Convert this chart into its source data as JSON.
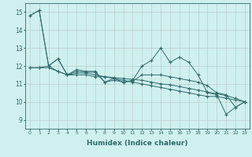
{
  "xlabel": "Humidex (Indice chaleur)",
  "xlim": [
    -0.5,
    23.5
  ],
  "ylim": [
    8.5,
    15.5
  ],
  "xticks": [
    0,
    1,
    2,
    3,
    4,
    5,
    6,
    7,
    8,
    9,
    10,
    11,
    12,
    13,
    14,
    15,
    16,
    17,
    18,
    19,
    20,
    21,
    22,
    23
  ],
  "yticks": [
    9,
    10,
    11,
    12,
    13,
    14,
    15
  ],
  "background_color": "#cff0ef",
  "grid_color": "#bbcccc",
  "line_color": "#2d6b6b",
  "series": [
    [
      14.8,
      15.1,
      12.0,
      12.4,
      11.5,
      11.8,
      11.7,
      11.7,
      11.1,
      11.3,
      11.1,
      11.2,
      12.0,
      12.3,
      13.0,
      12.2,
      12.5,
      12.2,
      11.5,
      10.5,
      10.4,
      9.3,
      9.7,
      10.0
    ],
    [
      14.8,
      15.1,
      12.0,
      12.4,
      11.5,
      11.7,
      11.65,
      11.65,
      11.1,
      11.2,
      11.1,
      11.15,
      11.5,
      11.5,
      11.5,
      11.4,
      11.3,
      11.2,
      11.1,
      10.9,
      10.5,
      10.4,
      9.7,
      10.0
    ],
    [
      11.9,
      11.9,
      11.9,
      11.7,
      11.5,
      11.5,
      11.5,
      11.4,
      11.4,
      11.3,
      11.2,
      11.1,
      11.0,
      10.9,
      10.8,
      10.7,
      10.6,
      10.5,
      10.4,
      10.3,
      10.3,
      10.2,
      10.1,
      10.0
    ],
    [
      11.9,
      11.9,
      12.0,
      11.7,
      11.5,
      11.6,
      11.6,
      11.5,
      11.4,
      11.35,
      11.3,
      11.25,
      11.2,
      11.1,
      11.0,
      10.95,
      10.85,
      10.75,
      10.65,
      10.55,
      10.45,
      10.35,
      10.2,
      10.0
    ]
  ]
}
